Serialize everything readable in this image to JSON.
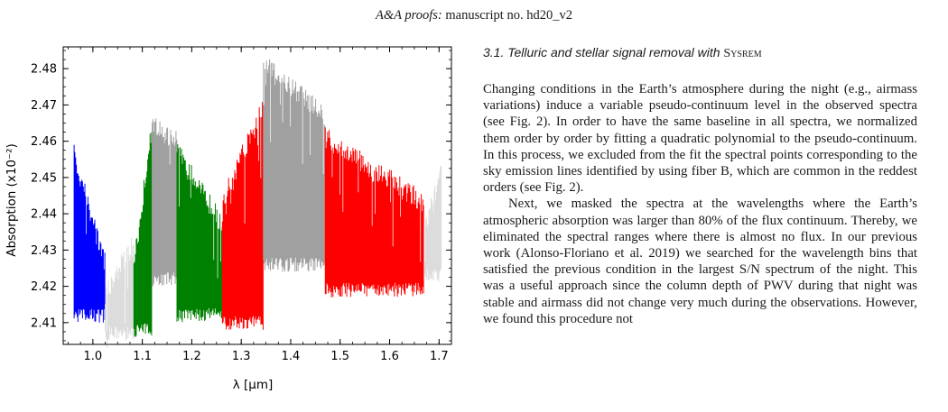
{
  "header": {
    "prefix": "A&A proofs:",
    "rest": " manuscript no. hd20_v2"
  },
  "section": {
    "number": "3.1.",
    "title": "Telluric and stellar signal removal with ",
    "method": "Sysrem"
  },
  "paragraphs": [
    "Changing conditions in the Earth’s atmosphere during the night (e.g., airmass variations) induce a variable pseudo-continuum level in the observed spectra (see Fig. 2). In order to have the same baseline in all spectra, we normalized them order by or­der by fitting a quadratic polynomial to the pseudo-continuum. In this process, we excluded from the fit the spectral points cor­responding to the sky emission lines identified by using fiber B, which are common in the reddest orders (see Fig. 2).",
    "Next, we masked the spectra at the wavelengths where the Earth’s atmospheric absorption was larger than 80% of the flux continuum. Thereby, we eliminated the spectral ranges where there is almost no flux. In our previous work (Alonso-Floriano et al. 2019) we searched for the wavelength bins that satisfied the previous condition in the largest S/N spectrum of the night. This was a useful approach since the column depth of PWV dur­ing that night was stable and airmass did not change very much during the observations. However, we found this procedure not"
  ],
  "chart_data": {
    "type": "area",
    "xlabel": "λ [μm]",
    "ylabel": "Absorption (x10⁻²)",
    "xlim": [
      0.94,
      1.725
    ],
    "ylim": [
      2.404,
      2.486
    ],
    "x_ticks": [
      1.0,
      1.1,
      1.2,
      1.3,
      1.4,
      1.5,
      1.6,
      1.7
    ],
    "y_ticks": [
      2.41,
      2.42,
      2.43,
      2.44,
      2.45,
      2.46,
      2.47,
      2.48
    ],
    "x_tick_labels": [
      "1.0",
      "1.1",
      "1.2",
      "1.3",
      "1.4",
      "1.5",
      "1.6",
      "1.7"
    ],
    "y_tick_labels": [
      "2.41",
      "2.42",
      "2.43",
      "2.44",
      "2.45",
      "2.46",
      "2.47",
      "2.48"
    ],
    "colors": {
      "blue": "#0000ff",
      "lightgray": "#dcdcdc",
      "gray": "#a0a0a0",
      "green": "#008000",
      "red": "#ff0000"
    },
    "orders": [
      {
        "x0": 0.962,
        "x1": 1.025,
        "top0": 2.459,
        "top1": 2.429,
        "bot": 2.41,
        "color": "blue"
      },
      {
        "x0": 1.025,
        "x1": 1.083,
        "top0": 2.421,
        "top1": 2.435,
        "bot": 2.405,
        "color": "lightgray"
      },
      {
        "x0": 1.083,
        "x1": 1.12,
        "top0": 2.428,
        "top1": 2.468,
        "bot": 2.406,
        "color": "green"
      },
      {
        "x0": 1.12,
        "x1": 1.17,
        "top0": 2.467,
        "top1": 2.463,
        "bot": 2.42,
        "color": "gray"
      },
      {
        "x0": 1.17,
        "x1": 1.262,
        "top0": 2.46,
        "top1": 2.44,
        "bot": 2.41,
        "color": "green"
      },
      {
        "x0": 1.262,
        "x1": 1.345,
        "top0": 2.447,
        "top1": 2.472,
        "bot": 2.408,
        "color": "red"
      },
      {
        "x0": 1.345,
        "x1": 1.47,
        "top0": 2.484,
        "top1": 2.47,
        "bot": 2.424,
        "color": "gray"
      },
      {
        "x0": 1.47,
        "x1": 1.67,
        "top0": 2.464,
        "top1": 2.446,
        "bot": 2.417,
        "color": "red"
      },
      {
        "x0": 1.67,
        "x1": 1.705,
        "top0": 2.438,
        "top1": 2.455,
        "bot": 2.421,
        "color": "lightgray"
      }
    ]
  }
}
